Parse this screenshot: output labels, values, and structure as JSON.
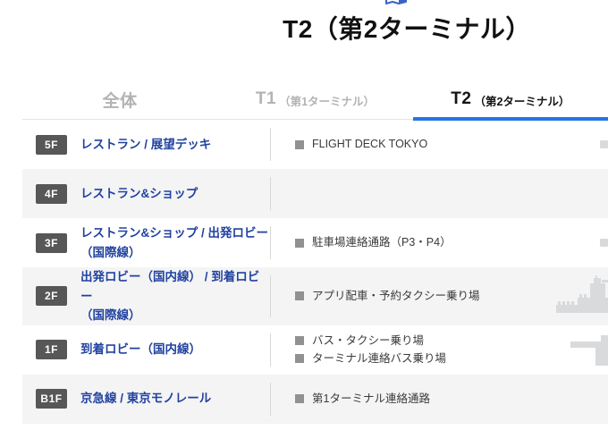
{
  "header": {
    "title": "T2（第2ターミナル）",
    "icon": "map-icon",
    "icon_color": "#3a63c4"
  },
  "tabs": [
    {
      "main": "全体",
      "sub": ""
    },
    {
      "main": "T1",
      "sub": "（第1ターミナル）"
    },
    {
      "main": "T2",
      "sub": "（第2ターミナル）"
    }
  ],
  "active_tab_index": 2,
  "floors": [
    {
      "badge": "5F",
      "link_lines": [
        "レストラン / 展望デッキ"
      ],
      "items": [
        "FLIGHT DECK TOKYO"
      ],
      "art": "map-fragment-square-icon"
    },
    {
      "badge": "4F",
      "link_lines": [
        "レストラン&ショップ"
      ],
      "items": [],
      "art": ""
    },
    {
      "badge": "3F",
      "link_lines": [
        "レストラン&ショップ / 出発ロビー",
        "（国際線）"
      ],
      "items": [
        "駐車場連絡通路（P3・P4）"
      ],
      "art": "map-fragment-square-icon"
    },
    {
      "badge": "2F",
      "link_lines": [
        "出発ロビー（国内線） / 到着ロビー",
        "（国際線）"
      ],
      "items": [
        "アプリ配車・予約タクシー乗り場"
      ],
      "art": "terminal-silhouette-icon"
    },
    {
      "badge": "1F",
      "link_lines": [
        "到着ロビー（国内線）"
      ],
      "items": [
        "バス・タクシー乗り場",
        "ターミナル連絡バス乗り場"
      ],
      "art": "ramp-silhouette-icon"
    },
    {
      "badge": "B1F",
      "link_lines": [
        "京急線 / 東京モノレール"
      ],
      "items": [
        "第1ターミナル連絡通路"
      ],
      "art": ""
    }
  ],
  "colors": {
    "accent_blue": "#2575e0",
    "link_blue": "#2143a0",
    "badge_bg": "#575757",
    "row_alt_bg": "#f4f4f5",
    "inactive_tab": "#b3b3b3",
    "bullet_gray": "#919191"
  }
}
